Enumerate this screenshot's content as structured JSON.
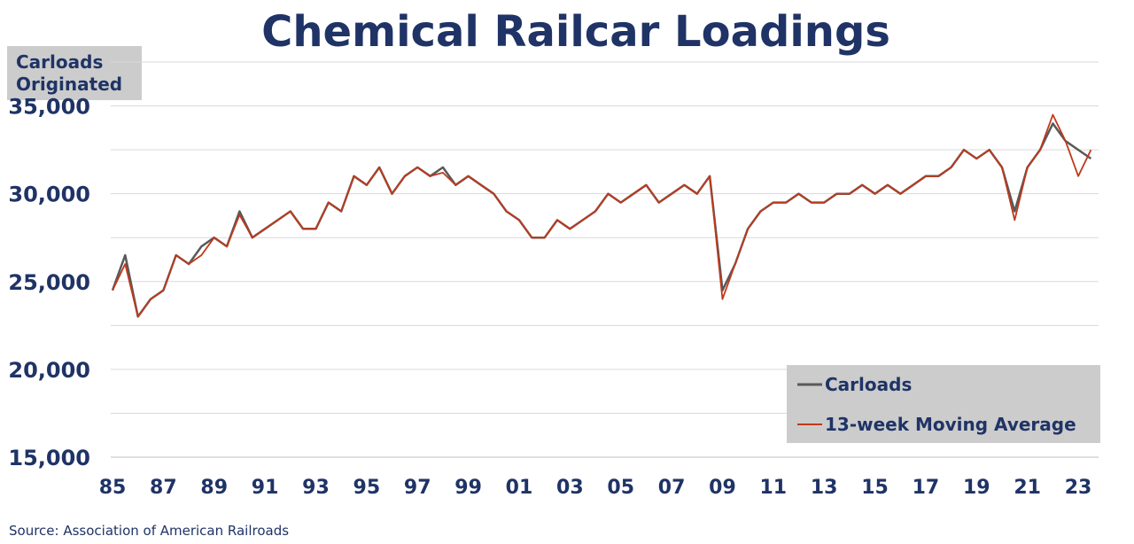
{
  "chart_data": {
    "type": "line",
    "title": "Chemical Railcar Loadings",
    "ylabel_lines": [
      "Carloads",
      "Originated"
    ],
    "ylim": [
      15000,
      37500
    ],
    "y_ticks": [
      15000,
      20000,
      25000,
      30000,
      35000
    ],
    "y_tick_labels": [
      "15,000",
      "20,000",
      "25,000",
      "30,000",
      "35,000"
    ],
    "xlim": [
      1985,
      2023.8
    ],
    "x_ticks": [
      1985,
      1987,
      1989,
      1991,
      1993,
      1995,
      1997,
      1999,
      2001,
      2003,
      2005,
      2007,
      2009,
      2011,
      2013,
      2015,
      2017,
      2019,
      2021,
      2023
    ],
    "x_tick_labels": [
      "85",
      "87",
      "89",
      "91",
      "93",
      "95",
      "97",
      "99",
      "01",
      "03",
      "05",
      "07",
      "09",
      "11",
      "13",
      "15",
      "17",
      "19",
      "21",
      "23"
    ],
    "grid": "horizontal",
    "legend_position": "bottom-right",
    "series": [
      {
        "name": "Carloads",
        "color": "#595959",
        "x": [
          1985.0,
          1985.5,
          1986.0,
          1986.5,
          1987.0,
          1987.5,
          1988.0,
          1988.5,
          1989.0,
          1989.5,
          1990.0,
          1990.5,
          1991.0,
          1991.5,
          1992.0,
          1992.5,
          1993.0,
          1993.5,
          1994.0,
          1994.5,
          1995.0,
          1995.5,
          1996.0,
          1996.5,
          1997.0,
          1997.5,
          1998.0,
          1998.5,
          1999.0,
          1999.5,
          2000.0,
          2000.5,
          2001.0,
          2001.5,
          2002.0,
          2002.5,
          2003.0,
          2003.5,
          2004.0,
          2004.5,
          2005.0,
          2005.5,
          2006.0,
          2006.5,
          2007.0,
          2007.5,
          2008.0,
          2008.5,
          2009.0,
          2009.5,
          2010.0,
          2010.5,
          2011.0,
          2011.5,
          2012.0,
          2012.5,
          2013.0,
          2013.5,
          2014.0,
          2014.5,
          2015.0,
          2015.5,
          2016.0,
          2016.5,
          2017.0,
          2017.5,
          2018.0,
          2018.5,
          2019.0,
          2019.5,
          2020.0,
          2020.5,
          2021.0,
          2021.5,
          2022.0,
          2022.5,
          2023.0,
          2023.5
        ],
        "values": [
          24500,
          26500,
          23000,
          24000,
          24500,
          26500,
          26000,
          27000,
          27500,
          27000,
          29000,
          27500,
          28000,
          28500,
          29000,
          28000,
          28000,
          29500,
          29000,
          31000,
          30500,
          31500,
          30000,
          31000,
          31500,
          31000,
          31500,
          30500,
          31000,
          30500,
          30000,
          29000,
          28500,
          27500,
          27500,
          28500,
          28000,
          28500,
          29000,
          30000,
          29500,
          30000,
          30500,
          29500,
          30000,
          30500,
          30000,
          31000,
          24500,
          26000,
          28000,
          29000,
          29500,
          29500,
          30000,
          29500,
          29500,
          30000,
          30000,
          30500,
          30000,
          30500,
          30000,
          30500,
          31000,
          31000,
          31500,
          32500,
          32000,
          32500,
          31500,
          29000,
          31500,
          32500,
          34000,
          33000,
          32500,
          32000
        ]
      },
      {
        "name": "13-week Moving Average",
        "color": "#c0391b",
        "x": [
          1985.0,
          1985.5,
          1986.0,
          1986.5,
          1987.0,
          1987.5,
          1988.0,
          1988.5,
          1989.0,
          1989.5,
          1990.0,
          1990.5,
          1991.0,
          1991.5,
          1992.0,
          1992.5,
          1993.0,
          1993.5,
          1994.0,
          1994.5,
          1995.0,
          1995.5,
          1996.0,
          1996.5,
          1997.0,
          1997.5,
          1998.0,
          1998.5,
          1999.0,
          1999.5,
          2000.0,
          2000.5,
          2001.0,
          2001.5,
          2002.0,
          2002.5,
          2003.0,
          2003.5,
          2004.0,
          2004.5,
          2005.0,
          2005.5,
          2006.0,
          2006.5,
          2007.0,
          2007.5,
          2008.0,
          2008.5,
          2009.0,
          2009.5,
          2010.0,
          2010.5,
          2011.0,
          2011.5,
          2012.0,
          2012.5,
          2013.0,
          2013.5,
          2014.0,
          2014.5,
          2015.0,
          2015.5,
          2016.0,
          2016.5,
          2017.0,
          2017.5,
          2018.0,
          2018.5,
          2019.0,
          2019.5,
          2020.0,
          2020.5,
          2021.0,
          2021.5,
          2022.0,
          2022.5,
          2023.0,
          2023.5
        ],
        "values": [
          24500,
          26000,
          23000,
          24000,
          24500,
          26500,
          26000,
          26500,
          27500,
          27000,
          28800,
          27500,
          28000,
          28500,
          29000,
          28000,
          28000,
          29500,
          29000,
          31000,
          30500,
          31500,
          30000,
          31000,
          31500,
          31000,
          31200,
          30500,
          31000,
          30500,
          30000,
          29000,
          28500,
          27500,
          27500,
          28500,
          28000,
          28500,
          29000,
          30000,
          29500,
          30000,
          30500,
          29500,
          30000,
          30500,
          30000,
          31000,
          24000,
          26000,
          28000,
          29000,
          29500,
          29500,
          30000,
          29500,
          29500,
          30000,
          30000,
          30500,
          30000,
          30500,
          30000,
          30500,
          31000,
          31000,
          31500,
          32500,
          32000,
          32500,
          31500,
          28500,
          31500,
          32500,
          34500,
          33000,
          31000,
          32500
        ]
      }
    ]
  },
  "source_text": "Source:  Association of American Railroads"
}
